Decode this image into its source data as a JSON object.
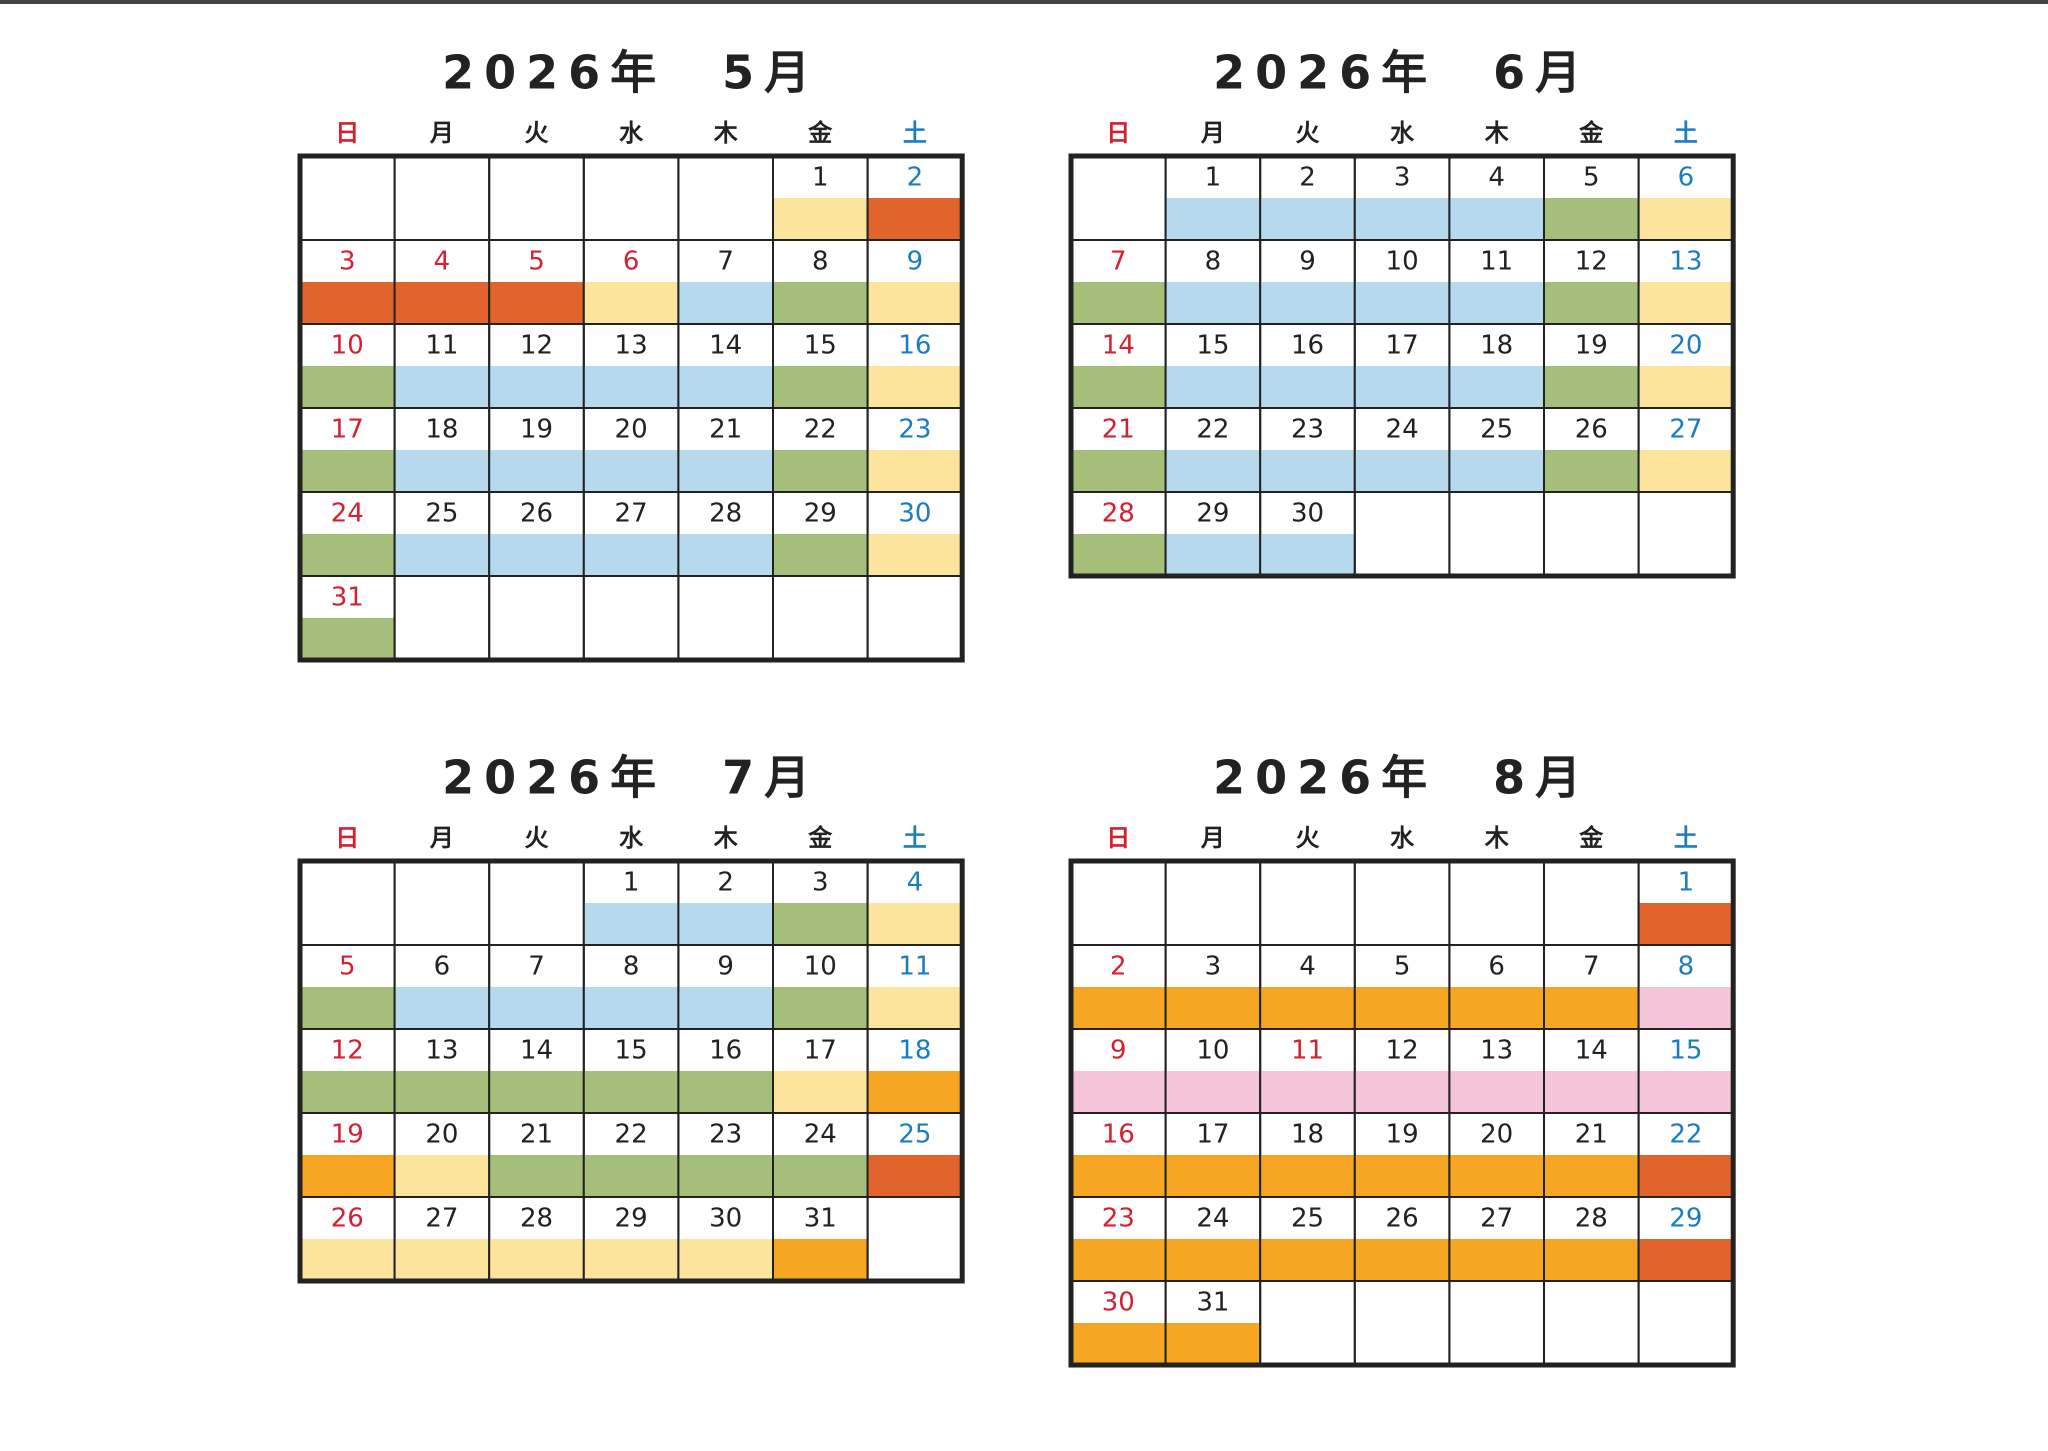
{
  "weekdays": [
    "日",
    "月",
    "火",
    "水",
    "木",
    "金",
    "土"
  ],
  "weekday_colors": [
    "#d42030",
    "#222222",
    "#222222",
    "#222222",
    "#222222",
    "#222222",
    "#1a7dbf"
  ],
  "months": [
    {
      "title": "2026年　5月",
      "weeks": [
        [
          null,
          null,
          null,
          null,
          null,
          {
            "day": 1,
            "fill": "#fde49c",
            "ink": "#222222"
          },
          {
            "day": 2,
            "fill": "#e0642c",
            "ink": "#1a7dbf"
          }
        ],
        [
          {
            "day": 3,
            "fill": "#e0642c",
            "ink": "#d42030"
          },
          {
            "day": 4,
            "fill": "#e0642c",
            "ink": "#d42030"
          },
          {
            "day": 5,
            "fill": "#e0642c",
            "ink": "#d42030"
          },
          {
            "day": 6,
            "fill": "#fde49c",
            "ink": "#d42030"
          },
          {
            "day": 7,
            "fill": "#b7d9ee",
            "ink": "#222222"
          },
          {
            "day": 8,
            "fill": "#a5bf7a",
            "ink": "#222222"
          },
          {
            "day": 9,
            "fill": "#fde49c",
            "ink": "#1a7dbf"
          }
        ],
        [
          {
            "day": 10,
            "fill": "#a5bf7a",
            "ink": "#d42030"
          },
          {
            "day": 11,
            "fill": "#b7d9ee",
            "ink": "#222222"
          },
          {
            "day": 12,
            "fill": "#b7d9ee",
            "ink": "#222222"
          },
          {
            "day": 13,
            "fill": "#b7d9ee",
            "ink": "#222222"
          },
          {
            "day": 14,
            "fill": "#b7d9ee",
            "ink": "#222222"
          },
          {
            "day": 15,
            "fill": "#a5bf7a",
            "ink": "#222222"
          },
          {
            "day": 16,
            "fill": "#fde49c",
            "ink": "#1a7dbf"
          }
        ],
        [
          {
            "day": 17,
            "fill": "#a5bf7a",
            "ink": "#d42030"
          },
          {
            "day": 18,
            "fill": "#b7d9ee",
            "ink": "#222222"
          },
          {
            "day": 19,
            "fill": "#b7d9ee",
            "ink": "#222222"
          },
          {
            "day": 20,
            "fill": "#b7d9ee",
            "ink": "#222222"
          },
          {
            "day": 21,
            "fill": "#b7d9ee",
            "ink": "#222222"
          },
          {
            "day": 22,
            "fill": "#a5bf7a",
            "ink": "#222222"
          },
          {
            "day": 23,
            "fill": "#fde49c",
            "ink": "#1a7dbf"
          }
        ],
        [
          {
            "day": 24,
            "fill": "#a5bf7a",
            "ink": "#d42030"
          },
          {
            "day": 25,
            "fill": "#b7d9ee",
            "ink": "#222222"
          },
          {
            "day": 26,
            "fill": "#b7d9ee",
            "ink": "#222222"
          },
          {
            "day": 27,
            "fill": "#b7d9ee",
            "ink": "#222222"
          },
          {
            "day": 28,
            "fill": "#b7d9ee",
            "ink": "#222222"
          },
          {
            "day": 29,
            "fill": "#a5bf7a",
            "ink": "#222222"
          },
          {
            "day": 30,
            "fill": "#fde49c",
            "ink": "#1a7dbf"
          }
        ],
        [
          {
            "day": 31,
            "fill": "#a5bf7a",
            "ink": "#d42030"
          },
          null,
          null,
          null,
          null,
          null,
          null
        ]
      ]
    },
    {
      "title": "2026年　6月",
      "weeks": [
        [
          null,
          {
            "day": 1,
            "fill": "#b7d9ee",
            "ink": "#222222"
          },
          {
            "day": 2,
            "fill": "#b7d9ee",
            "ink": "#222222"
          },
          {
            "day": 3,
            "fill": "#b7d9ee",
            "ink": "#222222"
          },
          {
            "day": 4,
            "fill": "#b7d9ee",
            "ink": "#222222"
          },
          {
            "day": 5,
            "fill": "#a5bf7a",
            "ink": "#222222"
          },
          {
            "day": 6,
            "fill": "#fde49c",
            "ink": "#1a7dbf"
          }
        ],
        [
          {
            "day": 7,
            "fill": "#a5bf7a",
            "ink": "#d42030"
          },
          {
            "day": 8,
            "fill": "#b7d9ee",
            "ink": "#222222"
          },
          {
            "day": 9,
            "fill": "#b7d9ee",
            "ink": "#222222"
          },
          {
            "day": 10,
            "fill": "#b7d9ee",
            "ink": "#222222"
          },
          {
            "day": 11,
            "fill": "#b7d9ee",
            "ink": "#222222"
          },
          {
            "day": 12,
            "fill": "#a5bf7a",
            "ink": "#222222"
          },
          {
            "day": 13,
            "fill": "#fde49c",
            "ink": "#1a7dbf"
          }
        ],
        [
          {
            "day": 14,
            "fill": "#a5bf7a",
            "ink": "#d42030"
          },
          {
            "day": 15,
            "fill": "#b7d9ee",
            "ink": "#222222"
          },
          {
            "day": 16,
            "fill": "#b7d9ee",
            "ink": "#222222"
          },
          {
            "day": 17,
            "fill": "#b7d9ee",
            "ink": "#222222"
          },
          {
            "day": 18,
            "fill": "#b7d9ee",
            "ink": "#222222"
          },
          {
            "day": 19,
            "fill": "#a5bf7a",
            "ink": "#222222"
          },
          {
            "day": 20,
            "fill": "#fde49c",
            "ink": "#1a7dbf"
          }
        ],
        [
          {
            "day": 21,
            "fill": "#a5bf7a",
            "ink": "#d42030"
          },
          {
            "day": 22,
            "fill": "#b7d9ee",
            "ink": "#222222"
          },
          {
            "day": 23,
            "fill": "#b7d9ee",
            "ink": "#222222"
          },
          {
            "day": 24,
            "fill": "#b7d9ee",
            "ink": "#222222"
          },
          {
            "day": 25,
            "fill": "#b7d9ee",
            "ink": "#222222"
          },
          {
            "day": 26,
            "fill": "#a5bf7a",
            "ink": "#222222"
          },
          {
            "day": 27,
            "fill": "#fde49c",
            "ink": "#1a7dbf"
          }
        ],
        [
          {
            "day": 28,
            "fill": "#a5bf7a",
            "ink": "#d42030"
          },
          {
            "day": 29,
            "fill": "#b7d9ee",
            "ink": "#222222"
          },
          {
            "day": 30,
            "fill": "#b7d9ee",
            "ink": "#222222"
          },
          null,
          null,
          null,
          null
        ]
      ]
    },
    {
      "title": "2026年　7月",
      "weeks": [
        [
          null,
          null,
          null,
          {
            "day": 1,
            "fill": "#b7d9ee",
            "ink": "#222222"
          },
          {
            "day": 2,
            "fill": "#b7d9ee",
            "ink": "#222222"
          },
          {
            "day": 3,
            "fill": "#a5bf7a",
            "ink": "#222222"
          },
          {
            "day": 4,
            "fill": "#fde49c",
            "ink": "#1a7dbf"
          }
        ],
        [
          {
            "day": 5,
            "fill": "#a5bf7a",
            "ink": "#d42030"
          },
          {
            "day": 6,
            "fill": "#b7d9ee",
            "ink": "#222222"
          },
          {
            "day": 7,
            "fill": "#b7d9ee",
            "ink": "#222222"
          },
          {
            "day": 8,
            "fill": "#b7d9ee",
            "ink": "#222222"
          },
          {
            "day": 9,
            "fill": "#b7d9ee",
            "ink": "#222222"
          },
          {
            "day": 10,
            "fill": "#a5bf7a",
            "ink": "#222222"
          },
          {
            "day": 11,
            "fill": "#fde49c",
            "ink": "#1a7dbf"
          }
        ],
        [
          {
            "day": 12,
            "fill": "#a5bf7a",
            "ink": "#d42030"
          },
          {
            "day": 13,
            "fill": "#a5bf7a",
            "ink": "#222222"
          },
          {
            "day": 14,
            "fill": "#a5bf7a",
            "ink": "#222222"
          },
          {
            "day": 15,
            "fill": "#a5bf7a",
            "ink": "#222222"
          },
          {
            "day": 16,
            "fill": "#a5bf7a",
            "ink": "#222222"
          },
          {
            "day": 17,
            "fill": "#fde49c",
            "ink": "#222222"
          },
          {
            "day": 18,
            "fill": "#f6a623",
            "ink": "#1a7dbf"
          }
        ],
        [
          {
            "day": 19,
            "fill": "#f6a623",
            "ink": "#d42030"
          },
          {
            "day": 20,
            "fill": "#fde49c",
            "ink": "#222222"
          },
          {
            "day": 21,
            "fill": "#a5bf7a",
            "ink": "#222222"
          },
          {
            "day": 22,
            "fill": "#a5bf7a",
            "ink": "#222222"
          },
          {
            "day": 23,
            "fill": "#a5bf7a",
            "ink": "#222222"
          },
          {
            "day": 24,
            "fill": "#a5bf7a",
            "ink": "#222222"
          },
          {
            "day": 25,
            "fill": "#e0642c",
            "ink": "#1a7dbf"
          }
        ],
        [
          {
            "day": 26,
            "fill": "#fde49c",
            "ink": "#d42030"
          },
          {
            "day": 27,
            "fill": "#fde49c",
            "ink": "#222222"
          },
          {
            "day": 28,
            "fill": "#fde49c",
            "ink": "#222222"
          },
          {
            "day": 29,
            "fill": "#fde49c",
            "ink": "#222222"
          },
          {
            "day": 30,
            "fill": "#fde49c",
            "ink": "#222222"
          },
          {
            "day": 31,
            "fill": "#f6a623",
            "ink": "#222222"
          },
          null
        ]
      ]
    },
    {
      "title": "2026年　8月",
      "weeks": [
        [
          null,
          null,
          null,
          null,
          null,
          null,
          {
            "day": 1,
            "fill": "#e0642c",
            "ink": "#1a7dbf"
          }
        ],
        [
          {
            "day": 2,
            "fill": "#f6a623",
            "ink": "#d42030"
          },
          {
            "day": 3,
            "fill": "#f6a623",
            "ink": "#222222"
          },
          {
            "day": 4,
            "fill": "#f6a623",
            "ink": "#222222"
          },
          {
            "day": 5,
            "fill": "#f6a623",
            "ink": "#222222"
          },
          {
            "day": 6,
            "fill": "#f6a623",
            "ink": "#222222"
          },
          {
            "day": 7,
            "fill": "#f6a623",
            "ink": "#222222"
          },
          {
            "day": 8,
            "fill": "#f6c4d8",
            "ink": "#1a7dbf"
          }
        ],
        [
          {
            "day": 9,
            "fill": "#f6c4d8",
            "ink": "#d42030"
          },
          {
            "day": 10,
            "fill": "#f6c4d8",
            "ink": "#222222"
          },
          {
            "day": 11,
            "fill": "#f6c4d8",
            "ink": "#d42030"
          },
          {
            "day": 12,
            "fill": "#f6c4d8",
            "ink": "#222222"
          },
          {
            "day": 13,
            "fill": "#f6c4d8",
            "ink": "#222222"
          },
          {
            "day": 14,
            "fill": "#f6c4d8",
            "ink": "#222222"
          },
          {
            "day": 15,
            "fill": "#f6c4d8",
            "ink": "#1a7dbf"
          }
        ],
        [
          {
            "day": 16,
            "fill": "#f6a623",
            "ink": "#d42030"
          },
          {
            "day": 17,
            "fill": "#f6a623",
            "ink": "#222222"
          },
          {
            "day": 18,
            "fill": "#f6a623",
            "ink": "#222222"
          },
          {
            "day": 19,
            "fill": "#f6a623",
            "ink": "#222222"
          },
          {
            "day": 20,
            "fill": "#f6a623",
            "ink": "#222222"
          },
          {
            "day": 21,
            "fill": "#f6a623",
            "ink": "#222222"
          },
          {
            "day": 22,
            "fill": "#e0642c",
            "ink": "#1a7dbf"
          }
        ],
        [
          {
            "day": 23,
            "fill": "#f6a623",
            "ink": "#d42030"
          },
          {
            "day": 24,
            "fill": "#f6a623",
            "ink": "#222222"
          },
          {
            "day": 25,
            "fill": "#f6a623",
            "ink": "#222222"
          },
          {
            "day": 26,
            "fill": "#f6a623",
            "ink": "#222222"
          },
          {
            "day": 27,
            "fill": "#f6a623",
            "ink": "#222222"
          },
          {
            "day": 28,
            "fill": "#f6a623",
            "ink": "#222222"
          },
          {
            "day": 29,
            "fill": "#e0642c",
            "ink": "#1a7dbf"
          }
        ],
        [
          {
            "day": 30,
            "fill": "#f6a623",
            "ink": "#d42030"
          },
          {
            "day": 31,
            "fill": "#f6a623",
            "ink": "#222222"
          },
          null,
          null,
          null,
          null,
          null
        ]
      ]
    }
  ]
}
